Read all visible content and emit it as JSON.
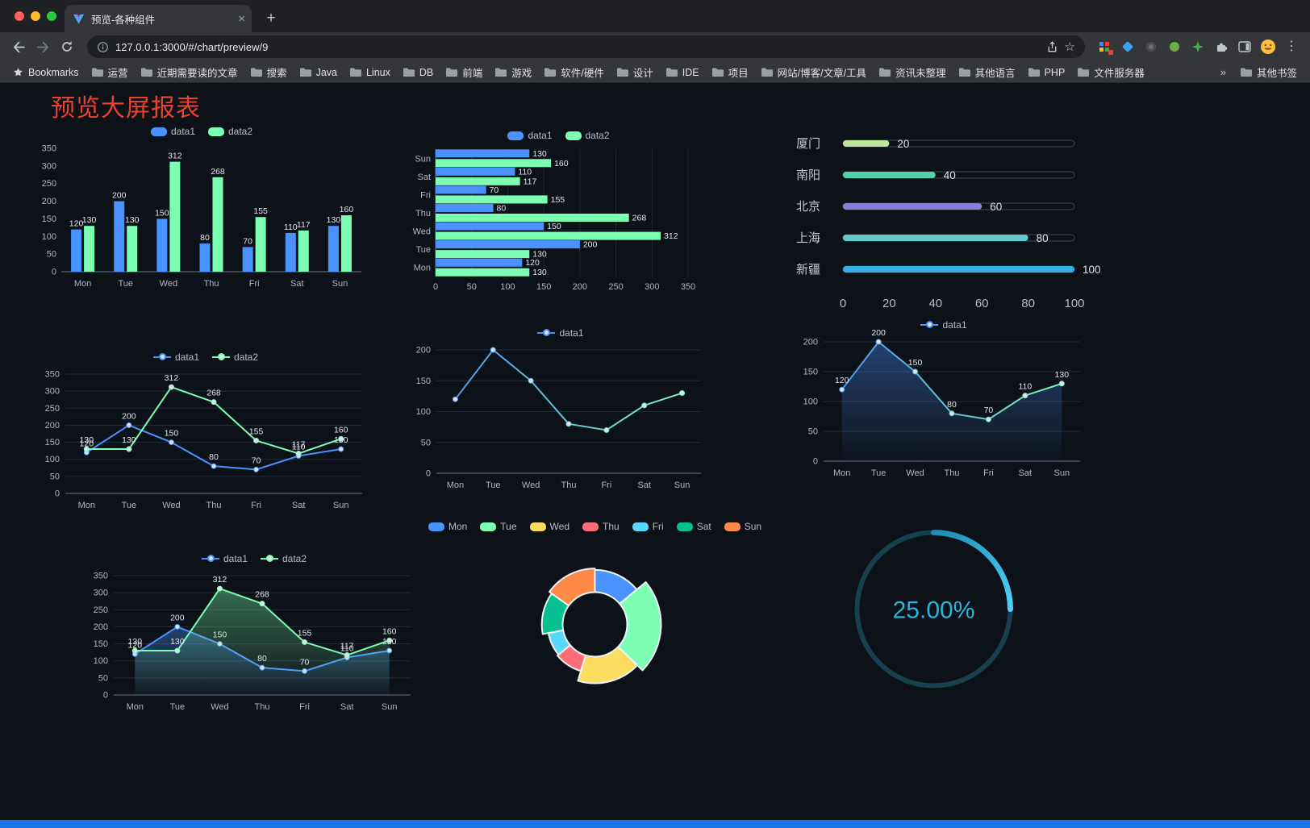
{
  "browser": {
    "tab_title": "预览-各种组件",
    "url": "127.0.0.1:3000/#/chart/preview/9",
    "bookmarks": [
      "Bookmarks",
      "运营",
      "近期需要读的文章",
      "搜索",
      "Java",
      "Linux",
      "DB",
      "前端",
      "游戏",
      "软件/硬件",
      "设计",
      "IDE",
      "项目",
      "网站/博客/文章/工具",
      "资讯未整理",
      "其他语言",
      "PHP",
      "文件服务器"
    ],
    "bookmarks_overflow": "»",
    "bookmarks_right": "其他书签"
  },
  "page": {
    "title": "预览大屏报表"
  },
  "theme": {
    "background": "#0d1118",
    "title_color": "#e8432f",
    "footer_color": "#1a73e8",
    "accent_blue": "#4992ff",
    "accent_green": "#7cffb2"
  },
  "chart_data": [
    {
      "id": "bar-vertical",
      "type": "bar",
      "categories": [
        "Mon",
        "Tue",
        "Wed",
        "Thu",
        "Fri",
        "Sat",
        "Sun"
      ],
      "series": [
        {
          "name": "data1",
          "color": "#4992ff",
          "values": [
            120,
            200,
            150,
            80,
            70,
            110,
            130
          ]
        },
        {
          "name": "data2",
          "color": "#7cffb2",
          "values": [
            130,
            130,
            312,
            268,
            155,
            117,
            160
          ]
        }
      ],
      "ylim": [
        0,
        350
      ],
      "ytick": 50,
      "labels": true,
      "legend_position": "top",
      "grid": false
    },
    {
      "id": "bar-horizontal",
      "type": "hbar",
      "categories": [
        "Mon",
        "Tue",
        "Wed",
        "Thu",
        "Fri",
        "Sat",
        "Sun"
      ],
      "series": [
        {
          "name": "data1",
          "color": "#4992ff",
          "values": [
            120,
            200,
            150,
            80,
            70,
            110,
            130
          ]
        },
        {
          "name": "data2",
          "color": "#7cffb2",
          "values": [
            130,
            130,
            312,
            268,
            155,
            117,
            160
          ]
        }
      ],
      "xlim": [
        0,
        350
      ],
      "xtick": 50,
      "labels": true,
      "legend_position": "top",
      "grid": true
    },
    {
      "id": "progress-list",
      "type": "progress",
      "items": [
        {
          "label": "厦门",
          "value": 20,
          "color": "#c0e69c"
        },
        {
          "label": "南阳",
          "value": 40,
          "color": "#54d1a6"
        },
        {
          "label": "北京",
          "value": 60,
          "color": "#8781d6"
        },
        {
          "label": "上海",
          "value": 80,
          "color": "#63c8ce"
        },
        {
          "label": "新疆",
          "value": 100,
          "color": "#35aee3"
        }
      ],
      "max": 100,
      "ticks": [
        0,
        20,
        40,
        60,
        80,
        100
      ]
    },
    {
      "id": "line-two-series",
      "type": "line",
      "categories": [
        "Mon",
        "Tue",
        "Wed",
        "Thu",
        "Fri",
        "Sat",
        "Sun"
      ],
      "series": [
        {
          "name": "data1",
          "color": "#4992ff",
          "values": [
            120,
            200,
            150,
            80,
            70,
            110,
            130
          ]
        },
        {
          "name": "data2",
          "color": "#7cffb2",
          "values": [
            130,
            130,
            312,
            268,
            155,
            117,
            160
          ]
        }
      ],
      "ylim": [
        0,
        350
      ],
      "ytick": 50,
      "labels": true,
      "grid": true
    },
    {
      "id": "line-gradient",
      "type": "line",
      "categories": [
        "Mon",
        "Tue",
        "Wed",
        "Thu",
        "Fri",
        "Sat",
        "Sun"
      ],
      "series": [
        {
          "name": "data1",
          "gradient": [
            "#4992ff",
            "#7cffb2"
          ],
          "values": [
            120,
            200,
            150,
            80,
            70,
            110,
            130
          ]
        }
      ],
      "ylim": [
        0,
        200
      ],
      "ytick": 50,
      "labels": false,
      "grid": true
    },
    {
      "id": "area-single",
      "type": "line",
      "categories": [
        "Mon",
        "Tue",
        "Wed",
        "Thu",
        "Fri",
        "Sat",
        "Sun"
      ],
      "series": [
        {
          "name": "data1",
          "gradient": [
            "#4992ff",
            "#7cffb2"
          ],
          "area": true,
          "values": [
            120,
            200,
            150,
            80,
            70,
            110,
            130
          ]
        }
      ],
      "ylim": [
        0,
        200
      ],
      "ytick": 50,
      "labels": true,
      "grid": true
    },
    {
      "id": "area-two-series",
      "type": "line",
      "categories": [
        "Mon",
        "Tue",
        "Wed",
        "Thu",
        "Fri",
        "Sat",
        "Sun"
      ],
      "series": [
        {
          "name": "data1",
          "color": "#4992ff",
          "area": true,
          "values": [
            120,
            200,
            150,
            80,
            70,
            110,
            130
          ]
        },
        {
          "name": "data2",
          "color": "#7cffb2",
          "area": true,
          "values": [
            130,
            130,
            312,
            268,
            155,
            117,
            160
          ]
        }
      ],
      "ylim": [
        0,
        350
      ],
      "ytick": 50,
      "labels": true,
      "grid": true
    },
    {
      "id": "rose-donut",
      "type": "rose",
      "items": [
        {
          "name": "Mon",
          "value": 120,
          "color": "#4992ff"
        },
        {
          "name": "Tue",
          "value": 200,
          "color": "#7cffb2"
        },
        {
          "name": "Wed",
          "value": 150,
          "color": "#fddd60"
        },
        {
          "name": "Thu",
          "value": 80,
          "color": "#ff6e76"
        },
        {
          "name": "Fri",
          "value": 70,
          "color": "#58d9f9"
        },
        {
          "name": "Sat",
          "value": 110,
          "color": "#05c091"
        },
        {
          "name": "Sun",
          "value": 130,
          "color": "#ff8a45"
        }
      ],
      "inner_radius": 40,
      "legend_position": "top"
    },
    {
      "id": "gauge",
      "type": "gauge",
      "value": 25,
      "label": "25.00%",
      "color_start": "#1d8cb4",
      "color_end": "#4ed0f7",
      "track_color": "#17414f"
    }
  ]
}
